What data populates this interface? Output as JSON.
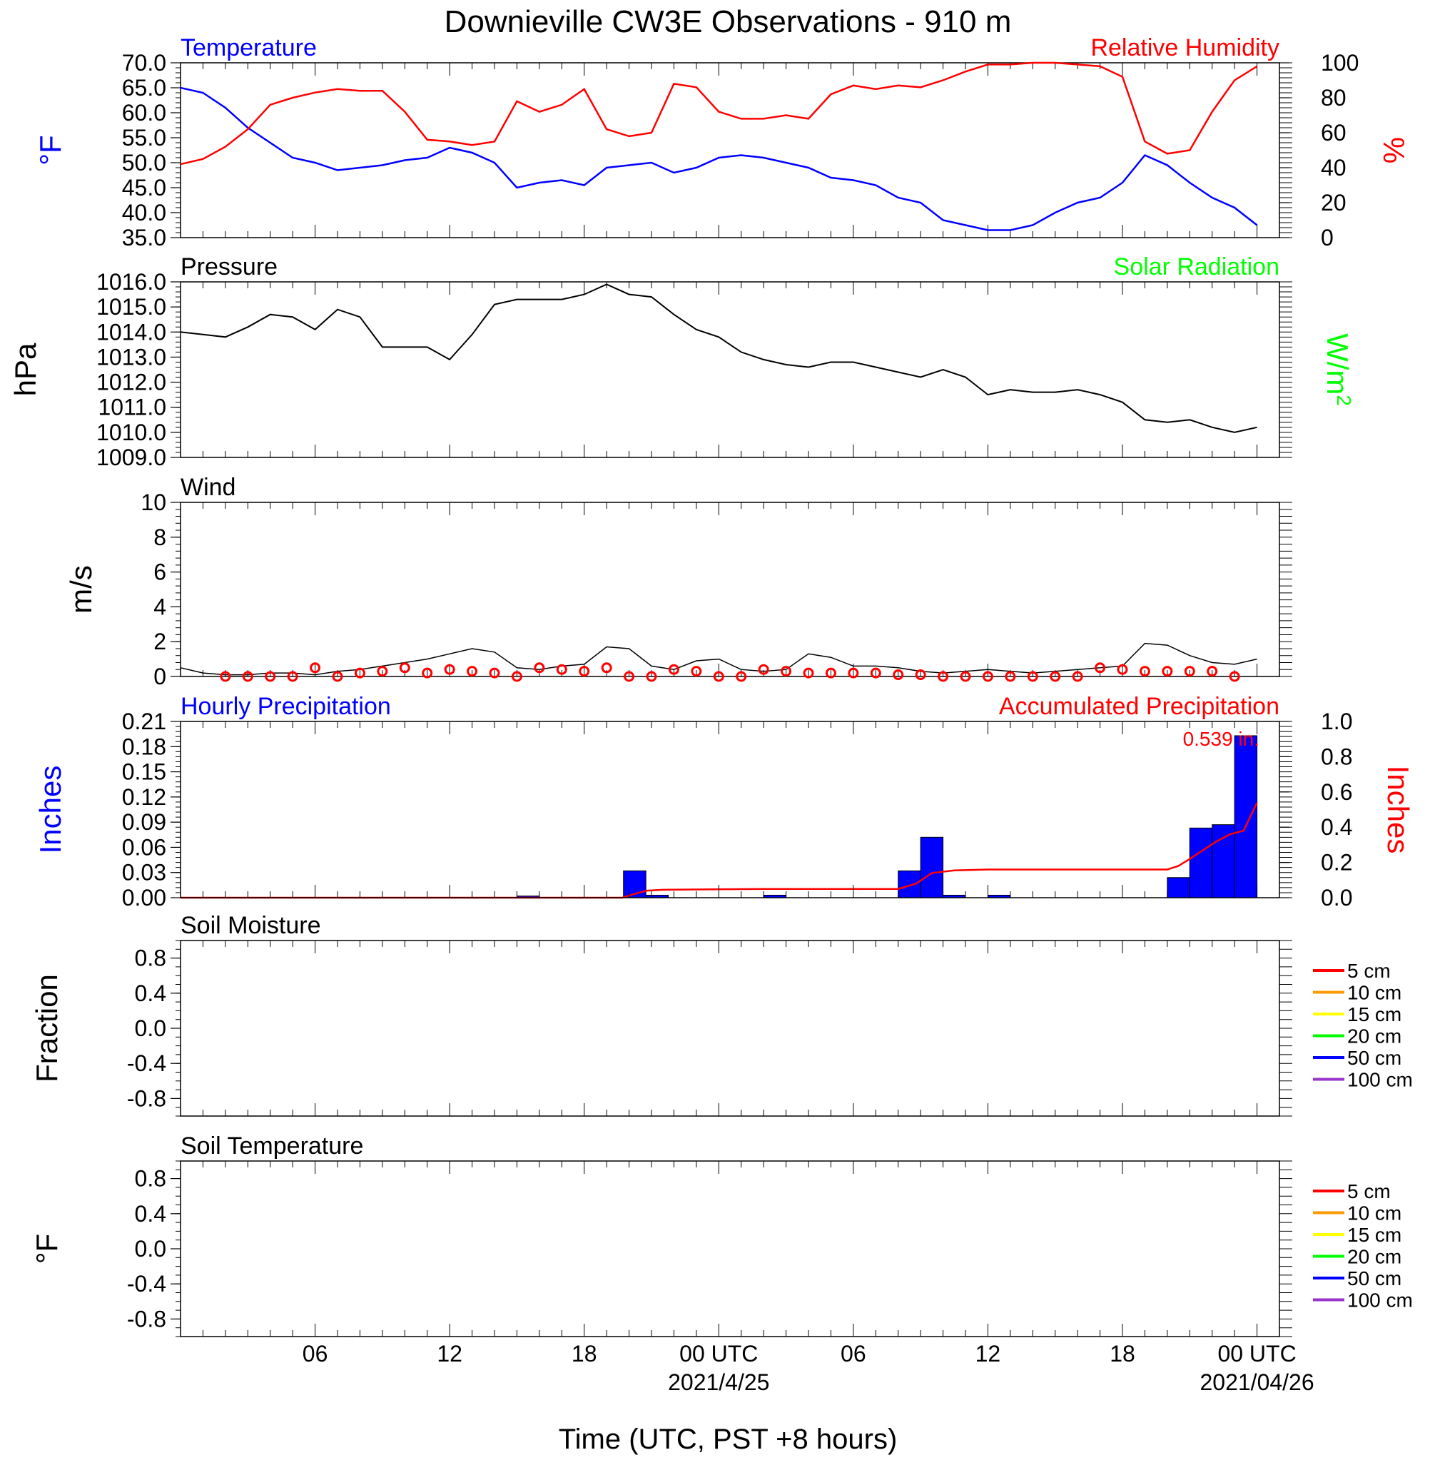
{
  "title": "Downieville CW3E Observations - 910 m",
  "x_axis": {
    "label": "Time (UTC, PST +8 hours)",
    "ticks": [
      {
        "hour": 6,
        "label": "06",
        "date": ""
      },
      {
        "hour": 12,
        "label": "12",
        "date": ""
      },
      {
        "hour": 18,
        "label": "18",
        "date": ""
      },
      {
        "hour": 24,
        "label": "00 UTC",
        "date": "2021/4/25"
      },
      {
        "hour": 30,
        "label": "06",
        "date": ""
      },
      {
        "hour": 36,
        "label": "12",
        "date": ""
      },
      {
        "hour": 42,
        "label": "18",
        "date": ""
      },
      {
        "hour": 48,
        "label": "00 UTC",
        "date": "2021/04/26"
      }
    ],
    "range_hours": [
      0,
      49
    ]
  },
  "legend_items": [
    "5 cm",
    "10 cm",
    "15 cm",
    "20 cm",
    "50 cm",
    "100 cm"
  ],
  "colors": {
    "temperature": "#0000ff",
    "humidity": "#ff0000",
    "pressure": "#000000",
    "solar": "#00ff00",
    "wind": "#000000",
    "wind_barb": "#ff0000",
    "precip_bar": "#0000ff",
    "precip_accum": "#ff0000",
    "legend": [
      "#ff0000",
      "#ff9900",
      "#ffff00",
      "#00ff00",
      "#0000ff",
      "#9933cc"
    ]
  },
  "chart_data": [
    {
      "type": "line",
      "panel": "temperature_humidity",
      "title_left": "Temperature",
      "title_right": "Relative Humidity",
      "ylabel_left": "°F",
      "ylabel_right": "%",
      "ylim_left": [
        35,
        70
      ],
      "ylim_right": [
        0,
        100
      ],
      "yticks_left": [
        "35.0",
        "40.0",
        "45.0",
        "50.0",
        "55.0",
        "60.0",
        "65.0",
        "70.0"
      ],
      "yticks_right": [
        "0",
        "20",
        "40",
        "60",
        "80",
        "100"
      ],
      "series": [
        {
          "name": "Temperature",
          "axis": "left",
          "x": [
            0,
            1,
            2,
            3,
            4,
            5,
            6,
            7,
            8,
            9,
            10,
            11,
            12,
            13,
            14,
            15,
            16,
            17,
            18,
            19,
            20,
            21,
            22,
            23,
            24,
            25,
            26,
            27,
            28,
            29,
            30,
            31,
            32,
            33,
            34,
            35,
            36,
            37,
            38,
            39,
            40,
            41,
            42,
            43,
            44,
            45,
            46,
            47,
            48
          ],
          "y": [
            65,
            64,
            61,
            57,
            54,
            51,
            50,
            48.5,
            49,
            49.5,
            50.5,
            51,
            53,
            52,
            50,
            45,
            46,
            46.5,
            45.5,
            49,
            49.5,
            50,
            48,
            49,
            51,
            51.5,
            51,
            50,
            49,
            47,
            46.5,
            45.5,
            43,
            42,
            38.5,
            37.5,
            36.5,
            36.5,
            37.5,
            40,
            42,
            43,
            46,
            51.5,
            49.5,
            46,
            43,
            41,
            37.5
          ]
        },
        {
          "name": "Relative Humidity",
          "axis": "right",
          "x": [
            0,
            1,
            2,
            3,
            4,
            5,
            6,
            7,
            8,
            9,
            10,
            11,
            12,
            13,
            14,
            15,
            16,
            17,
            18,
            19,
            20,
            21,
            22,
            23,
            24,
            25,
            26,
            27,
            28,
            29,
            30,
            31,
            32,
            33,
            34,
            35,
            36,
            37,
            38,
            39,
            40,
            41,
            42,
            43,
            44,
            45,
            46,
            47,
            48
          ],
          "y": [
            42,
            45,
            52,
            62,
            76,
            80,
            83,
            85,
            84,
            84,
            72,
            56,
            55,
            53,
            55,
            78,
            72,
            76,
            85,
            62,
            58,
            60,
            88,
            86,
            72,
            68,
            68,
            70,
            68,
            82,
            87,
            85,
            87,
            86,
            90,
            95,
            99,
            99,
            100,
            100,
            99,
            98,
            92,
            55,
            48,
            50,
            72,
            90,
            98
          ]
        }
      ]
    },
    {
      "type": "line",
      "panel": "pressure",
      "title_left": "Pressure",
      "title_right": "Solar Radiation",
      "ylabel_left": "hPa",
      "ylabel_right": "W/m",
      "ylabel_right_sup": "2",
      "ylim": [
        1009,
        1016
      ],
      "yticks": [
        "1009.0",
        "1010.0",
        "1011.0",
        "1012.0",
        "1013.0",
        "1014.0",
        "1015.0",
        "1016.0"
      ],
      "series": [
        {
          "name": "Pressure",
          "x": [
            0,
            1,
            2,
            3,
            4,
            5,
            6,
            7,
            8,
            9,
            10,
            11,
            12,
            13,
            14,
            15,
            16,
            17,
            18,
            19,
            20,
            21,
            22,
            23,
            24,
            25,
            26,
            27,
            28,
            29,
            30,
            31,
            32,
            33,
            34,
            35,
            36,
            37,
            38,
            39,
            40,
            41,
            42,
            43,
            44,
            45,
            46,
            47,
            48
          ],
          "y": [
            1014,
            1013.9,
            1013.8,
            1014.2,
            1014.7,
            1014.6,
            1014.1,
            1014.9,
            1014.6,
            1013.4,
            1013.4,
            1013.4,
            1012.9,
            1013.9,
            1015.1,
            1015.3,
            1015.3,
            1015.3,
            1015.5,
            1015.9,
            1015.5,
            1015.4,
            1014.7,
            1014.1,
            1013.8,
            1013.2,
            1012.9,
            1012.7,
            1012.6,
            1012.8,
            1012.8,
            1012.6,
            1012.4,
            1012.2,
            1012.5,
            1012.2,
            1011.5,
            1011.7,
            1011.6,
            1011.6,
            1011.7,
            1011.5,
            1011.2,
            1010.5,
            1010.4,
            1010.5,
            1010.2,
            1010,
            1010.2
          ]
        }
      ]
    },
    {
      "type": "line",
      "panel": "wind",
      "title_left": "Wind",
      "ylabel": "m/s",
      "ylim": [
        0,
        10
      ],
      "yticks": [
        "0",
        "2",
        "4",
        "6",
        "8",
        "10"
      ],
      "series": [
        {
          "name": "Wind",
          "x": [
            0,
            1,
            2,
            3,
            4,
            5,
            6,
            7,
            8,
            9,
            10,
            11,
            12,
            13,
            14,
            15,
            16,
            17,
            18,
            19,
            20,
            21,
            22,
            23,
            24,
            25,
            26,
            27,
            28,
            29,
            30,
            31,
            32,
            33,
            34,
            35,
            36,
            37,
            38,
            39,
            40,
            41,
            42,
            43,
            44,
            45,
            46,
            47,
            48
          ],
          "y": [
            0.5,
            0.2,
            0.1,
            0.1,
            0.2,
            0.2,
            0.1,
            0.3,
            0.4,
            0.6,
            0.8,
            1.0,
            1.3,
            1.6,
            1.4,
            0.5,
            0.4,
            0.6,
            0.7,
            1.7,
            1.6,
            0.6,
            0.4,
            0.9,
            1.0,
            0.4,
            0.3,
            0.4,
            1.3,
            1.1,
            0.6,
            0.6,
            0.5,
            0.3,
            0.2,
            0.3,
            0.4,
            0.3,
            0.2,
            0.3,
            0.4,
            0.5,
            0.6,
            1.9,
            1.8,
            1.2,
            0.8,
            0.7,
            1.0
          ]
        }
      ],
      "barbs": {
        "hours": [
          2,
          3,
          4,
          5,
          6,
          7,
          8,
          9,
          10,
          11,
          12,
          13,
          14,
          15,
          16,
          17,
          18,
          19,
          20,
          21,
          22,
          23,
          24,
          25,
          26,
          27,
          28,
          29,
          30,
          31,
          32,
          33,
          34,
          35,
          36,
          37,
          38,
          39,
          40,
          41,
          42,
          43,
          44,
          45,
          46,
          47
        ],
        "speed": [
          0,
          0,
          0,
          0,
          0.5,
          0,
          0.2,
          0.3,
          0.5,
          0.2,
          0.4,
          0.3,
          0.2,
          0,
          0.5,
          0.4,
          0.3,
          0.5,
          0,
          0,
          0.4,
          0.3,
          0,
          0,
          0.4,
          0.3,
          0.2,
          0.2,
          0.2,
          0.2,
          0.1,
          0.1,
          0,
          0,
          0,
          0,
          0,
          0,
          0,
          0.5,
          0.4,
          0.3,
          0.3,
          0.3,
          0.3,
          0
        ]
      }
    },
    {
      "type": "bar",
      "panel": "precipitation",
      "title_left": "Hourly Precipitation",
      "title_right": "Accumulated Precipitation",
      "annotation": "0.539 in.",
      "ylabel_left": "Inches",
      "ylabel_right": "Inches",
      "ylim_left": [
        0,
        0.21
      ],
      "ylim_right": [
        0,
        1.0
      ],
      "yticks_left": [
        "0.00",
        "0.03",
        "0.06",
        "0.09",
        "0.12",
        "0.15",
        "0.18",
        "0.21"
      ],
      "yticks_right": [
        "0.0",
        "0.2",
        "0.4",
        "0.6",
        "0.8",
        "1.0"
      ],
      "bars": [
        {
          "start": 15,
          "end": 16,
          "value": 0.002
        },
        {
          "start": 19.75,
          "end": 20.75,
          "value": 0.032
        },
        {
          "start": 20.75,
          "end": 21.75,
          "value": 0.003
        },
        {
          "start": 26,
          "end": 27,
          "value": 0.003
        },
        {
          "start": 32,
          "end": 33,
          "value": 0.032
        },
        {
          "start": 33,
          "end": 34,
          "value": 0.072
        },
        {
          "start": 34,
          "end": 35,
          "value": 0.003
        },
        {
          "start": 36,
          "end": 37,
          "value": 0.003
        },
        {
          "start": 44,
          "end": 45,
          "value": 0.024
        },
        {
          "start": 45,
          "end": 46,
          "value": 0.083
        },
        {
          "start": 46,
          "end": 47,
          "value": 0.087
        },
        {
          "start": 47,
          "end": 48,
          "value": 0.193
        }
      ],
      "accumulated": {
        "x": [
          0,
          15,
          19.7,
          20.2,
          20.8,
          21.5,
          26,
          32,
          32.8,
          33.5,
          34.5,
          36,
          44,
          44.5,
          45,
          45.6,
          46.2,
          46.8,
          47.4,
          48
        ],
        "y": [
          0,
          0,
          0,
          0.02,
          0.04,
          0.045,
          0.05,
          0.05,
          0.08,
          0.14,
          0.155,
          0.16,
          0.16,
          0.18,
          0.22,
          0.27,
          0.32,
          0.36,
          0.38,
          0.539
        ]
      }
    },
    {
      "type": "line",
      "panel": "soil_moisture",
      "title_left": "Soil Moisture",
      "ylabel": "Fraction",
      "ylim": [
        -1,
        1
      ],
      "yticks": [
        "-0.8",
        "-0.4",
        "0.0",
        "0.4",
        "0.8"
      ],
      "series": []
    },
    {
      "type": "line",
      "panel": "soil_temperature",
      "title_left": "Soil Temperature",
      "ylabel": "°F",
      "ylim": [
        -1,
        1
      ],
      "yticks": [
        "-0.8",
        "-0.4",
        "0.0",
        "0.4",
        "0.8"
      ],
      "series": []
    }
  ]
}
